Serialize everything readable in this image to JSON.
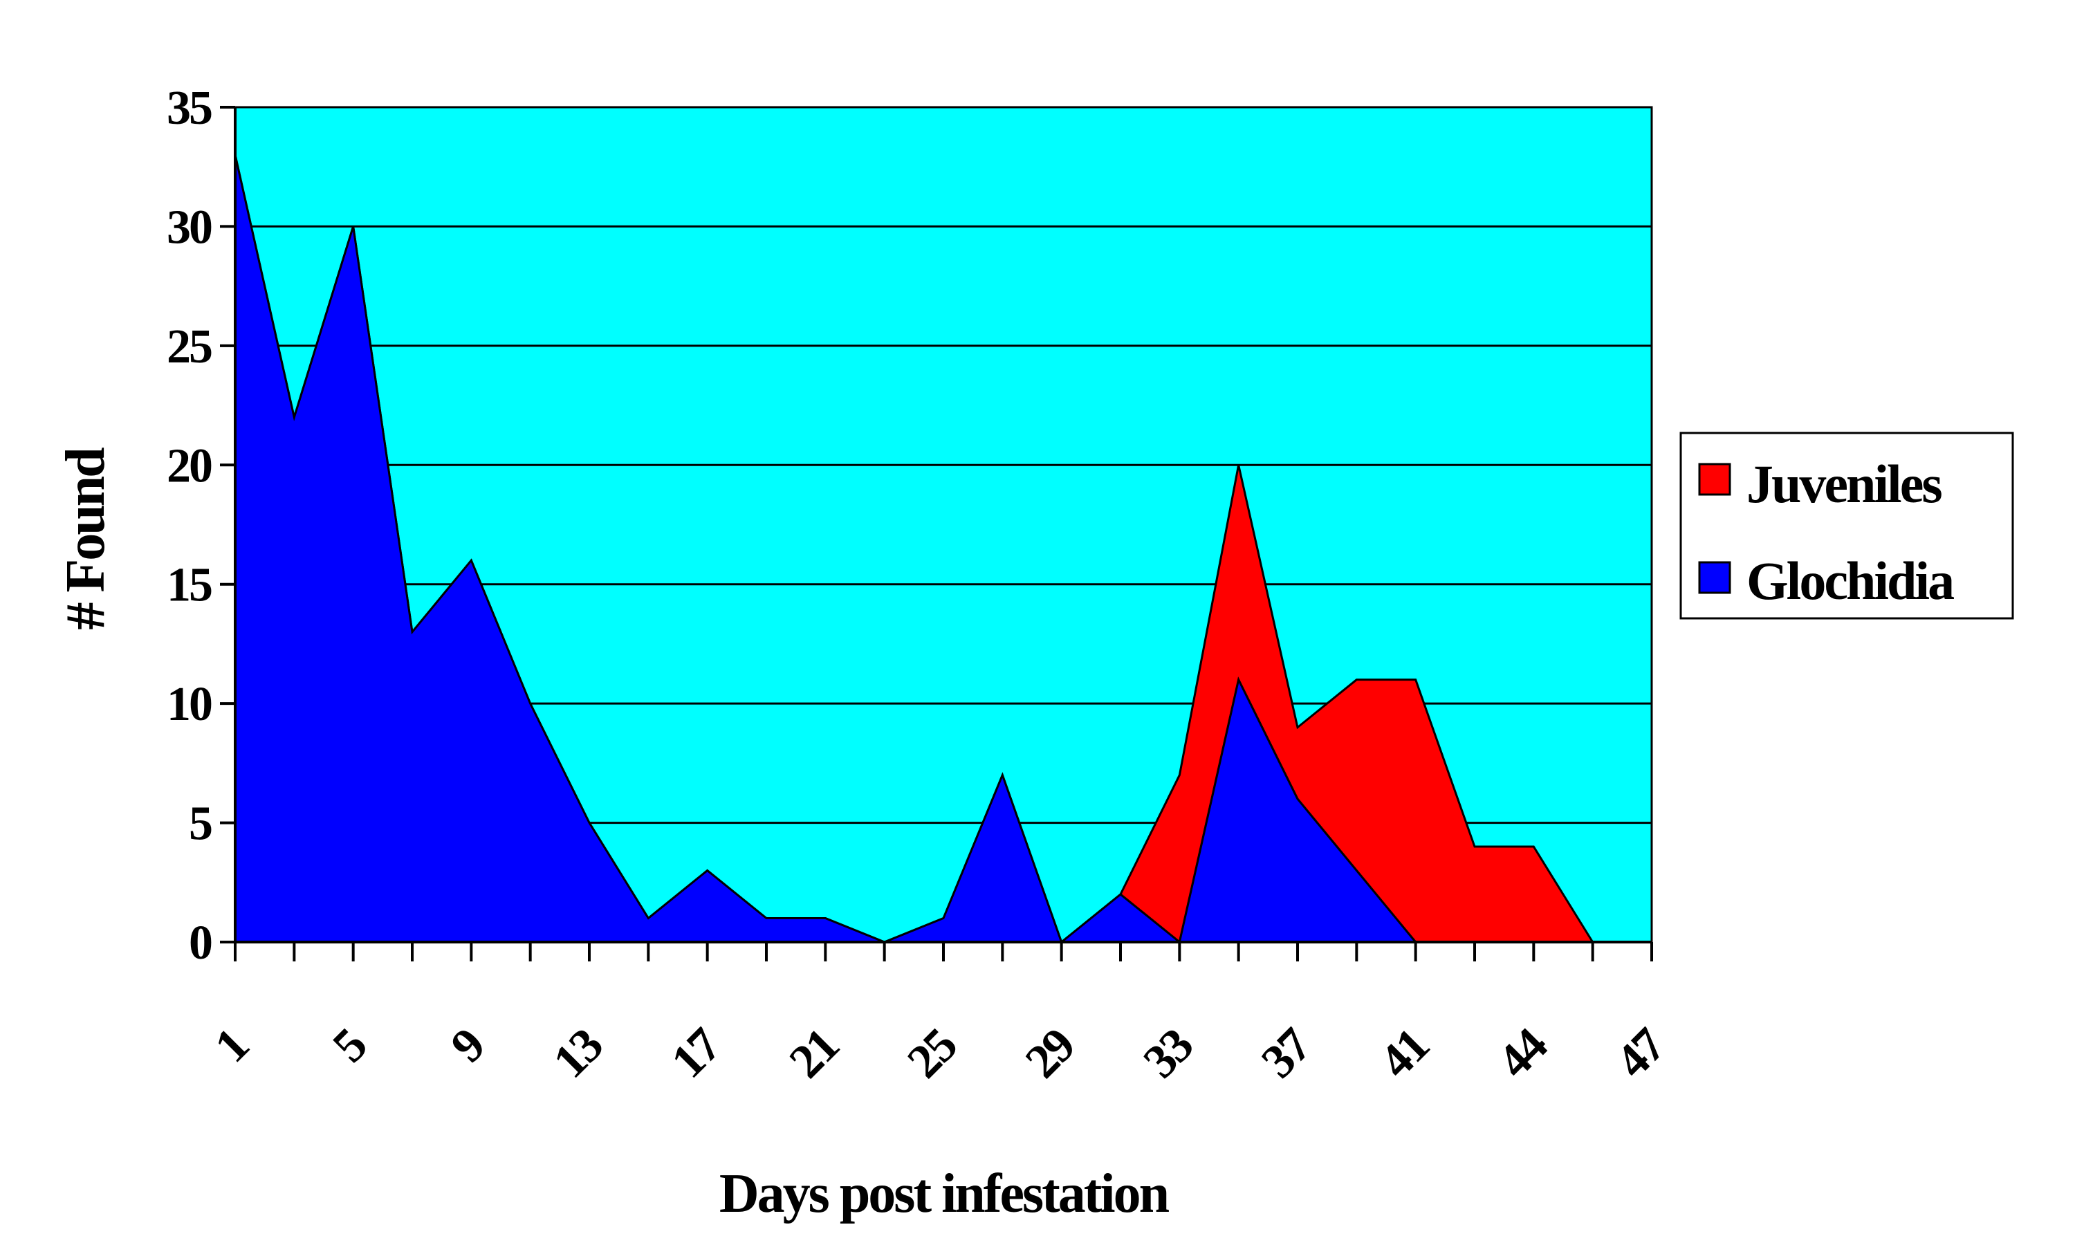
{
  "chart_data": {
    "type": "area",
    "stacked": true,
    "xlabel": "Days post infestation",
    "ylabel": "# Found",
    "ylim": [
      0,
      35
    ],
    "yticks": [
      0,
      5,
      10,
      15,
      20,
      25,
      30,
      35
    ],
    "xtick_labels": [
      "1",
      "5",
      "9",
      "13",
      "17",
      "21",
      "25",
      "29",
      "33",
      "37",
      "41",
      "44",
      "47"
    ],
    "grid": "horizontal",
    "legend_position": "right",
    "plot_background": "#00FFFF",
    "series": [
      {
        "name": "Glochidia",
        "color": "#0000FF",
        "values": [
          33,
          22,
          30,
          13,
          16,
          10,
          5,
          1,
          3,
          1,
          1,
          0,
          1,
          7,
          0,
          2,
          0,
          11,
          6,
          3,
          0,
          0,
          0,
          0
        ]
      },
      {
        "name": "Juveniles",
        "color": "#FF0000",
        "values": [
          0,
          0,
          0,
          0,
          0,
          0,
          0,
          0,
          0,
          0,
          0,
          0,
          0,
          0,
          0,
          0,
          7,
          9,
          3,
          8,
          11,
          4,
          4,
          0
        ]
      }
    ]
  }
}
